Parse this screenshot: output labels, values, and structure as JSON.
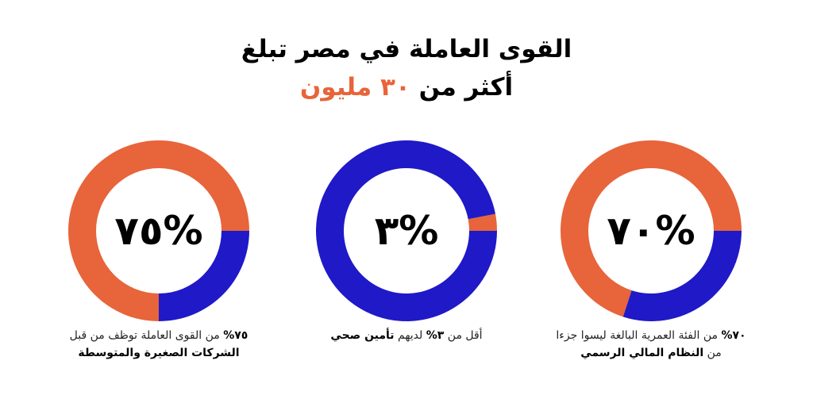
{
  "title": {
    "line1": "القوى العاملة في مصر تبلغ",
    "line2_pre": "أكثر من",
    "line2_highlight": "٣٠ مليون"
  },
  "colors": {
    "orange": "#e8643a",
    "blue": "#1f19c8"
  },
  "chart_data": [
    {
      "type": "pie",
      "label": "%٧٠",
      "values": [
        70,
        30
      ],
      "series": [
        {
          "name": "",
          "value": 70,
          "color": "#e8643a"
        },
        {
          "name": "",
          "value": 30,
          "color": "#1f19c8"
        }
      ],
      "caption": {
        "pct": "٧٠%",
        "text1": "من الفئة العمرية البالغة ليسوا جزءا",
        "text2": "من",
        "bold": "النظام المالي الرسمي"
      }
    },
    {
      "type": "pie",
      "label": "%٣",
      "values": [
        3,
        97
      ],
      "series": [
        {
          "name": "",
          "value": 3,
          "color": "#e8643a"
        },
        {
          "name": "",
          "value": 97,
          "color": "#1f19c8"
        }
      ],
      "caption": {
        "pre": "أقل من",
        "pct": "٣%",
        "text": "لديهم",
        "bold": "تأمين صحي"
      }
    },
    {
      "type": "pie",
      "label": "%٧٥",
      "values": [
        75,
        25
      ],
      "series": [
        {
          "name": "",
          "value": 75,
          "color": "#e8643a"
        },
        {
          "name": "",
          "value": 25,
          "color": "#1f19c8"
        }
      ],
      "caption": {
        "pct": "٧٥%",
        "text": "من القوى العاملة توظف من قبل",
        "bold": "الشركات الصغيرة والمتوسطة"
      }
    }
  ]
}
